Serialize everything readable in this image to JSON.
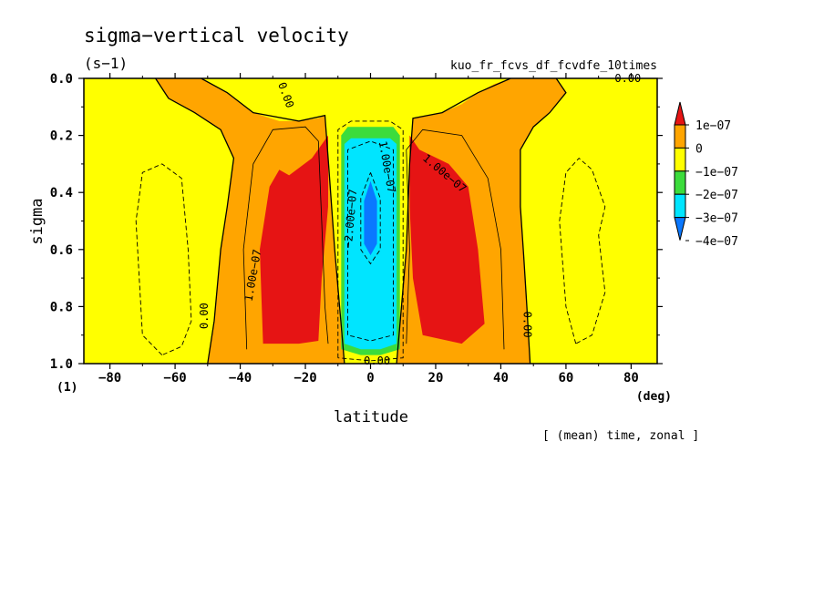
{
  "chart_data": {
    "type": "heatmap",
    "title": "sigma−vertical velocity",
    "units": "(s−1)",
    "run_name": "kuo_fr_fcvs_df_fcvdfe_10times",
    "xlabel": "latitude",
    "xunit": "(deg)",
    "ylabel": "sigma",
    "yunit": "(1)",
    "footer": "[ (mean) time, zonal ]",
    "xlim": [
      -88,
      88
    ],
    "ylim": [
      0.0,
      1.0
    ],
    "y_inverted": true,
    "x_ticks": [
      -80,
      -60,
      -40,
      -20,
      0,
      20,
      40,
      60,
      80
    ],
    "x_tick_labels": [
      "−80",
      "−60",
      "−40",
      "−20",
      "0",
      "20",
      "40",
      "60",
      "80"
    ],
    "y_ticks": [
      0.0,
      0.2,
      0.4,
      0.6,
      0.8,
      1.0
    ],
    "y_tick_labels": [
      "0.0",
      "0.2",
      "0.4",
      "0.6",
      "0.8",
      "1.0"
    ],
    "colorbar": {
      "levels": [
        -4e-07,
        -3e-07,
        -2e-07,
        -1e-07,
        0,
        1e-07
      ],
      "labels": [
        "−4e−07",
        "−3e−07",
        "−2e−07",
        "−1e−07",
        "0",
        "1e−07"
      ],
      "colors": [
        "#0a78ff",
        "#00e5ff",
        "#3cdc3c",
        "#ffff00",
        "#ffa500",
        "#e61414"
      ]
    },
    "contour_labels": [
      "0.00",
      "0.00",
      "0.00",
      "0.00",
      "0.00",
      "1.00e−07",
      "1.00e−07",
      "1.00e−07",
      "−2.00e−07"
    ],
    "regions": {
      "background": {
        "fill_level": -1e-07,
        "color": "#ffff00"
      },
      "orange_left": {
        "fill_level": 0,
        "color": "#ffa500",
        "polygon_lat_sigma": [
          [
            -88,
            0.0
          ],
          [
            -52,
            0.0
          ],
          [
            -44,
            0.05
          ],
          [
            -36,
            0.12
          ],
          [
            -28,
            0.15
          ],
          [
            -22,
            0.15
          ],
          [
            -16,
            0.14
          ],
          [
            -14,
            0.13
          ],
          [
            -13,
            0.28
          ],
          [
            -11,
            0.6
          ],
          [
            -9,
            0.9
          ],
          [
            -8,
            1.0
          ],
          [
            -50,
            1.0
          ],
          [
            -48,
            0.85
          ],
          [
            -46,
            0.6
          ],
          [
            -44,
            0.45
          ],
          [
            -42,
            0.28
          ],
          [
            -46,
            0.18
          ],
          [
            -54,
            0.12
          ],
          [
            -62,
            0.07
          ],
          [
            -66,
            0.0
          ]
        ]
      },
      "orange_right": {
        "fill_level": 0,
        "color": "#ffa500",
        "polygon_lat_sigma": [
          [
            8,
            1.0
          ],
          [
            9,
            0.85
          ],
          [
            11,
            0.6
          ],
          [
            12,
            0.3
          ],
          [
            13,
            0.14
          ],
          [
            18,
            0.13
          ],
          [
            22,
            0.12
          ],
          [
            28,
            0.09
          ],
          [
            33,
            0.05
          ],
          [
            38,
            0.02
          ],
          [
            43,
            0.0
          ],
          [
            57,
            0.0
          ],
          [
            60,
            0.05
          ],
          [
            55,
            0.12
          ],
          [
            50,
            0.17
          ],
          [
            46,
            0.25
          ],
          [
            46,
            0.45
          ],
          [
            47,
            0.62
          ],
          [
            48,
            0.8
          ],
          [
            49,
            1.0
          ]
        ]
      },
      "red_left": {
        "fill_level": 1e-07,
        "color": "#e61414",
        "polygon_lat_sigma": [
          [
            -33,
            0.93
          ],
          [
            -34,
            0.6
          ],
          [
            -31,
            0.38
          ],
          [
            -28,
            0.32
          ],
          [
            -25,
            0.34
          ],
          [
            -18,
            0.28
          ],
          [
            -13,
            0.2
          ],
          [
            -13,
            0.45
          ],
          [
            -15,
            0.7
          ],
          [
            -16,
            0.92
          ],
          [
            -22,
            0.93
          ]
        ]
      },
      "red_right": {
        "fill_level": 1e-07,
        "color": "#e61414",
        "polygon_lat_sigma": [
          [
            12,
            0.2
          ],
          [
            15,
            0.25
          ],
          [
            24,
            0.3
          ],
          [
            30,
            0.38
          ],
          [
            33,
            0.6
          ],
          [
            35,
            0.86
          ],
          [
            28,
            0.93
          ],
          [
            16,
            0.9
          ],
          [
            13,
            0.7
          ],
          [
            12,
            0.45
          ]
        ]
      },
      "green_core": {
        "fill_level": -2e-07,
        "color": "#3cdc3c",
        "polygon_lat_sigma": [
          [
            -9,
            0.95
          ],
          [
            -9,
            0.2
          ],
          [
            -7,
            0.17
          ],
          [
            7,
            0.17
          ],
          [
            9,
            0.2
          ],
          [
            9,
            0.95
          ],
          [
            3,
            0.97
          ],
          [
            -3,
            0.97
          ]
        ]
      },
      "cyan_core": {
        "fill_level": -3e-07,
        "color": "#00e5ff",
        "polygon_lat_sigma": [
          [
            -8,
            0.93
          ],
          [
            -8,
            0.23
          ],
          [
            -6,
            0.21
          ],
          [
            6,
            0.21
          ],
          [
            8,
            0.23
          ],
          [
            8,
            0.93
          ],
          [
            3,
            0.95
          ],
          [
            -3,
            0.95
          ]
        ]
      },
      "blue_core": {
        "fill_level": -4e-07,
        "color": "#0a78ff",
        "polygon_lat_sigma": [
          [
            0,
            0.36
          ],
          [
            2,
            0.43
          ],
          [
            2,
            0.58
          ],
          [
            0,
            0.62
          ],
          [
            -2,
            0.58
          ],
          [
            -2,
            0.43
          ]
        ]
      }
    }
  }
}
